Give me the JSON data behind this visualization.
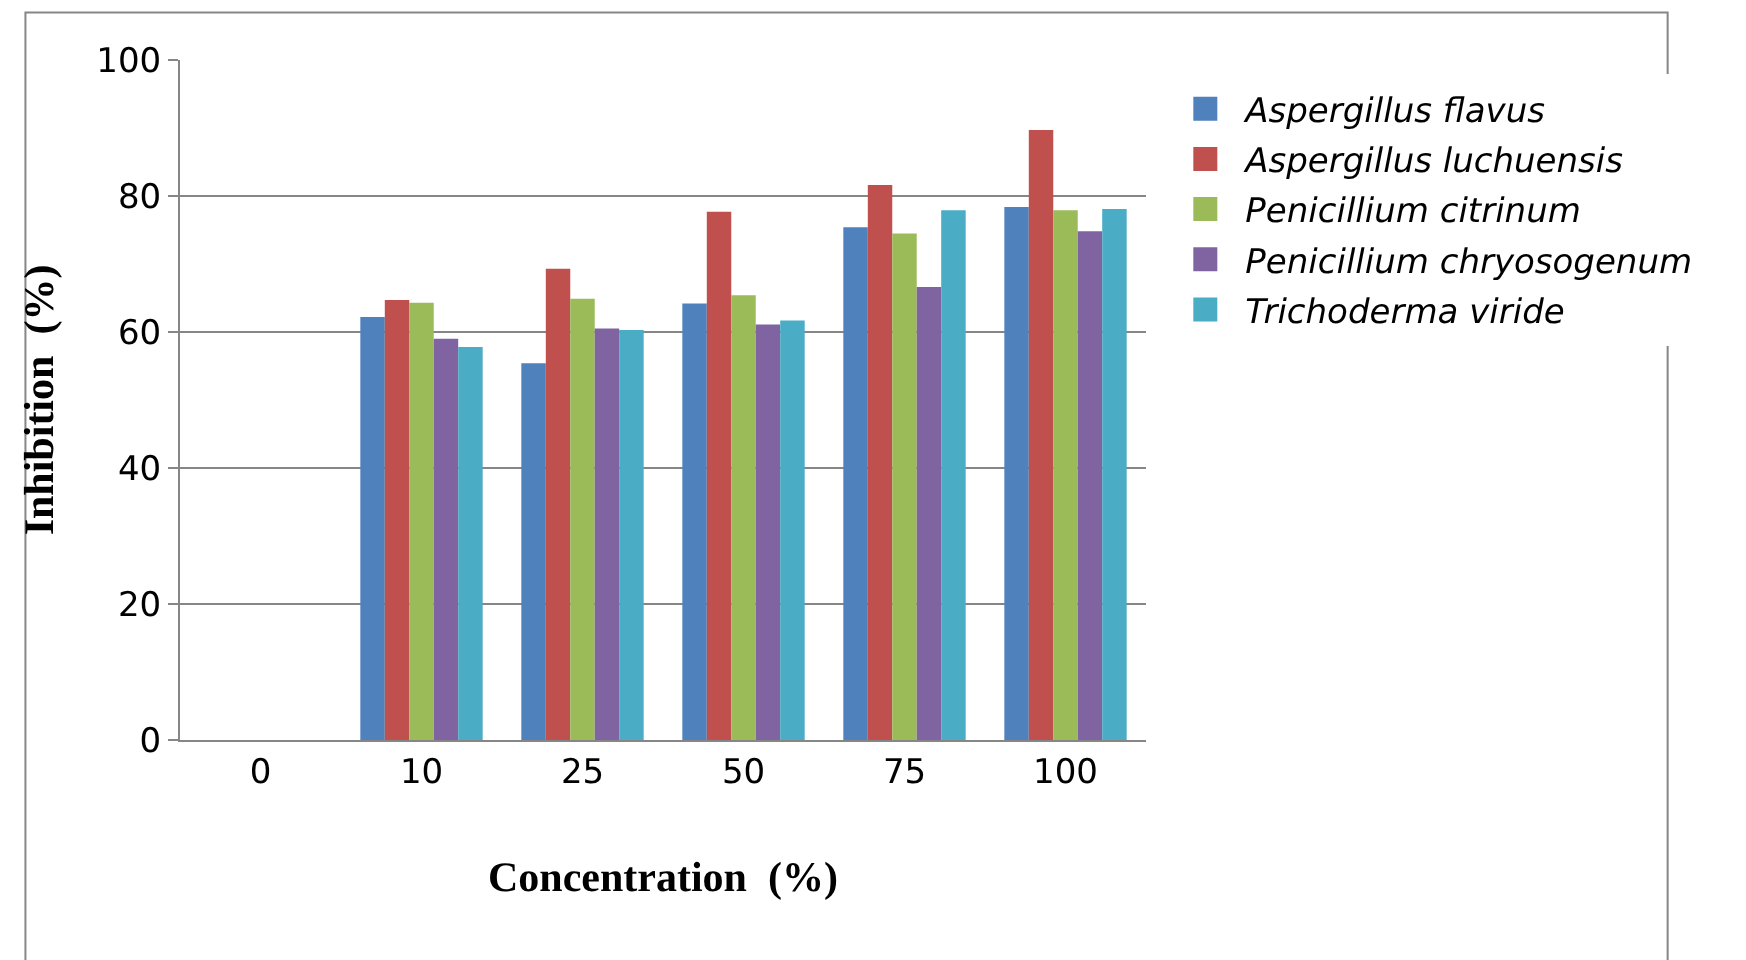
{
  "chart_data": {
    "type": "bar",
    "xlabel": "Concentration  (%)",
    "ylabel": "Inhibition  (%)",
    "categories": [
      "0",
      "10",
      "25",
      "50",
      "75",
      "100"
    ],
    "series": [
      {
        "name": "Aspergillus flavus",
        "color": "#4f81bd",
        "values": [
          0,
          62.2,
          55.4,
          64.2,
          75.4,
          78.4
        ]
      },
      {
        "name": "Aspergillus luchuensis",
        "color": "#c0504d",
        "values": [
          0,
          64.7,
          69.3,
          77.7,
          81.6,
          89.7
        ]
      },
      {
        "name": "Penicillium citrinum",
        "color": "#9bbb59",
        "values": [
          0,
          64.3,
          64.9,
          65.4,
          74.5,
          77.9
        ]
      },
      {
        "name": "Penicillium chryosogenum",
        "color": "#8064a2",
        "values": [
          0,
          59.0,
          60.5,
          61.1,
          66.6,
          74.8
        ]
      },
      {
        "name": "Trichoderma viride",
        "color": "#4bacc6",
        "values": [
          0,
          57.8,
          60.3,
          61.7,
          77.9,
          78.1
        ]
      }
    ],
    "ylim": [
      0,
      100
    ],
    "yticks": [
      0,
      20,
      40,
      60,
      80,
      100
    ],
    "grid": "y",
    "legend": "right"
  }
}
